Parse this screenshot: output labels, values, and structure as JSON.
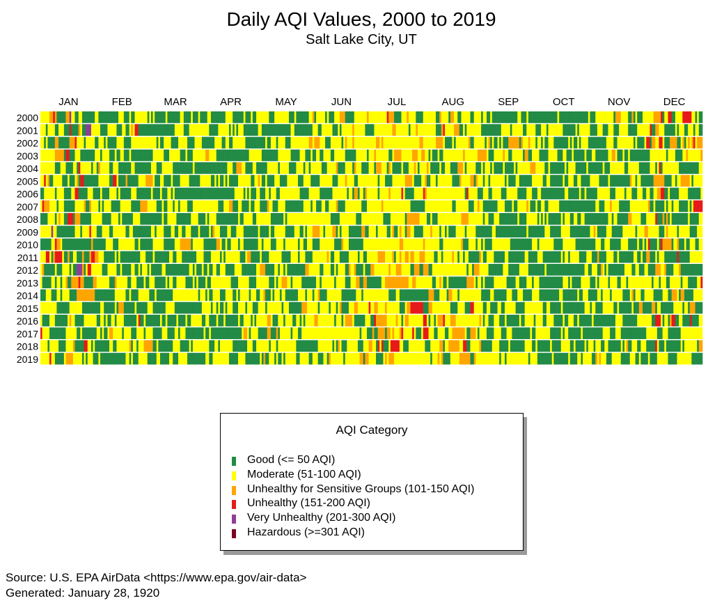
{
  "chart_data": {
    "type": "heatmap",
    "title": "Daily AQI Values, 2000 to 2019",
    "subtitle": "Salt Lake City, UT",
    "x_labels": [
      "JAN",
      "FEB",
      "MAR",
      "APR",
      "MAY",
      "JUN",
      "JUL",
      "AUG",
      "SEP",
      "OCT",
      "NOV",
      "DEC"
    ],
    "y_labels": [
      "2000",
      "2001",
      "2002",
      "2003",
      "2004",
      "2005",
      "2006",
      "2007",
      "2008",
      "2009",
      "2010",
      "2011",
      "2012",
      "2013",
      "2014",
      "2015",
      "2016",
      "2017",
      "2018",
      "2019"
    ],
    "days_per_month": [
      31,
      28,
      31,
      30,
      31,
      30,
      31,
      31,
      30,
      31,
      30,
      31
    ],
    "legend_title": "AQI Category",
    "categories": [
      {
        "key": "good",
        "label": "Good (<= 50 AQI)",
        "color": "#228b46"
      },
      {
        "key": "moderate",
        "label": "Moderate (51-100 AQI)",
        "color": "#ffff00"
      },
      {
        "key": "usg",
        "label": "Unhealthy for Sensitive Groups (101-150 AQI)",
        "color": "#ffa500"
      },
      {
        "key": "unhealthy",
        "label": "Unhealthy (151-200 AQI)",
        "color": "#e61a1a"
      },
      {
        "key": "very_unhealthy",
        "label": "Very Unhealthy (201-300 AQI)",
        "color": "#8e3e96"
      },
      {
        "key": "hazardous",
        "label": "Hazardous (>=301 AQI)",
        "color": "#7e0023"
      }
    ],
    "monthly_category_shares": [
      [
        0.45,
        0.38,
        0.1,
        0.06,
        0.01,
        0.0
      ],
      [
        0.52,
        0.4,
        0.06,
        0.02,
        0.0,
        0.0
      ],
      [
        0.62,
        0.37,
        0.01,
        0.0,
        0.0,
        0.0
      ],
      [
        0.58,
        0.41,
        0.01,
        0.0,
        0.0,
        0.0
      ],
      [
        0.42,
        0.55,
        0.03,
        0.0,
        0.0,
        0.0
      ],
      [
        0.28,
        0.62,
        0.1,
        0.0,
        0.0,
        0.0
      ],
      [
        0.18,
        0.62,
        0.17,
        0.03,
        0.0,
        0.0
      ],
      [
        0.25,
        0.6,
        0.13,
        0.02,
        0.0,
        0.0
      ],
      [
        0.52,
        0.46,
        0.02,
        0.0,
        0.0,
        0.0
      ],
      [
        0.63,
        0.37,
        0.0,
        0.0,
        0.0,
        0.0
      ],
      [
        0.53,
        0.43,
        0.04,
        0.0,
        0.0,
        0.0
      ],
      [
        0.45,
        0.4,
        0.1,
        0.05,
        0.0,
        0.0
      ]
    ]
  },
  "source": "Source: U.S. EPA AirData <https://www.epa.gov/air-data>",
  "generated": "Generated: January 28, 1920"
}
